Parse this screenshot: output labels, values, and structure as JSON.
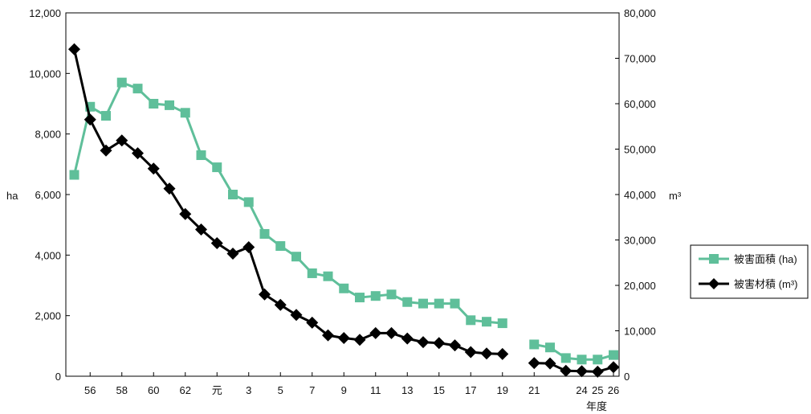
{
  "chart_data": {
    "type": "line",
    "x_tick_labels": [
      "56",
      "58",
      "60",
      "62",
      "元",
      "3",
      "5",
      "7",
      "9",
      "11",
      "13",
      "15",
      "17",
      "19",
      "21",
      "24",
      "25",
      "26"
    ],
    "x_label": "年度",
    "y_left_label": "ha",
    "y_left_ticks": [
      "0",
      "2,000",
      "4,000",
      "6,000",
      "8,000",
      "10,000",
      "12,000"
    ],
    "y_left_lim": [
      0,
      12000
    ],
    "y_right_label": "m³",
    "y_right_ticks": [
      "0",
      "10,000",
      "20,000",
      "30,000",
      "40,000",
      "50,000",
      "60,000",
      "70,000",
      "80,000"
    ],
    "y_right_lim": [
      0,
      80000
    ],
    "grid": false,
    "legend_position": "right",
    "series": [
      {
        "name": "被害面積 (ha)",
        "axis": "left",
        "color": "#5fbf9a",
        "marker": "square",
        "values": [
          6650,
          8900,
          8600,
          9700,
          9500,
          9000,
          8950,
          8700,
          7300,
          6900,
          6000,
          5750,
          4700,
          4300,
          3950,
          3400,
          3300,
          2900,
          2600,
          2650,
          2700,
          2450,
          2400,
          2400,
          2400,
          1850,
          1800,
          1750,
          null,
          1050,
          950,
          600,
          550,
          550,
          700
        ]
      },
      {
        "name": "被害材積 (m³)",
        "axis": "right",
        "color": "#000000",
        "marker": "diamond",
        "values": [
          72000,
          56500,
          49700,
          51900,
          49100,
          45700,
          41300,
          35700,
          32300,
          29300,
          27000,
          28400,
          18000,
          15700,
          13500,
          11800,
          9000,
          8400,
          8000,
          9500,
          9500,
          8300,
          7500,
          7300,
          6800,
          5300,
          5000,
          4900,
          null,
          2900,
          2800,
          1200,
          1100,
          1000,
          2000
        ]
      }
    ]
  }
}
